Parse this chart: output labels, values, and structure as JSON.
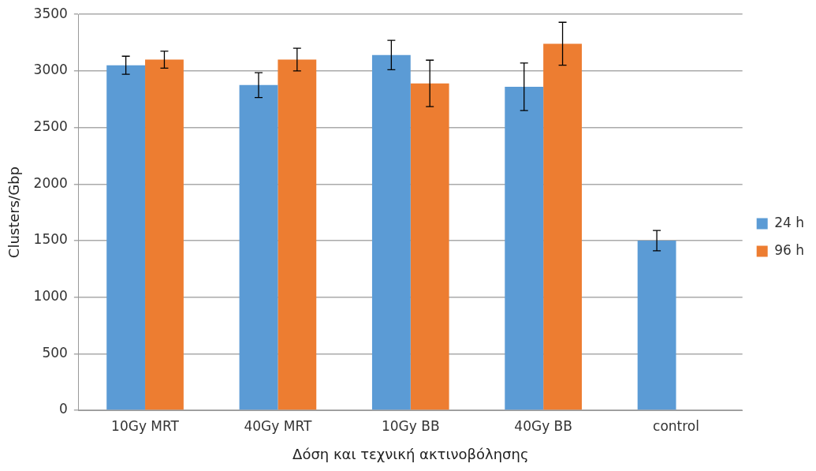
{
  "chart_data": {
    "type": "bar",
    "xlabel": "Δόση και τεχνική ακτινοβόλησης",
    "ylabel": "Clusters/Gbp",
    "categories": [
      "10Gy MRT",
      "40Gy MRT",
      "10Gy BB",
      "40Gy BB",
      "control"
    ],
    "series": [
      {
        "name": "24 h",
        "color": "#5b9bd5",
        "values": [
          3050,
          2875,
          3140,
          2860,
          1500
        ],
        "errors": [
          80,
          110,
          130,
          210,
          90
        ]
      },
      {
        "name": "96 h",
        "color": "#ed7d31",
        "values": [
          3100,
          3100,
          2890,
          3240,
          null
        ],
        "errors": [
          75,
          100,
          205,
          190,
          null
        ]
      }
    ],
    "ylim": [
      0,
      3500
    ],
    "yticks": [
      0,
      500,
      1000,
      1500,
      2000,
      2500,
      3000,
      3500
    ],
    "grid": "y",
    "legend": "right"
  }
}
